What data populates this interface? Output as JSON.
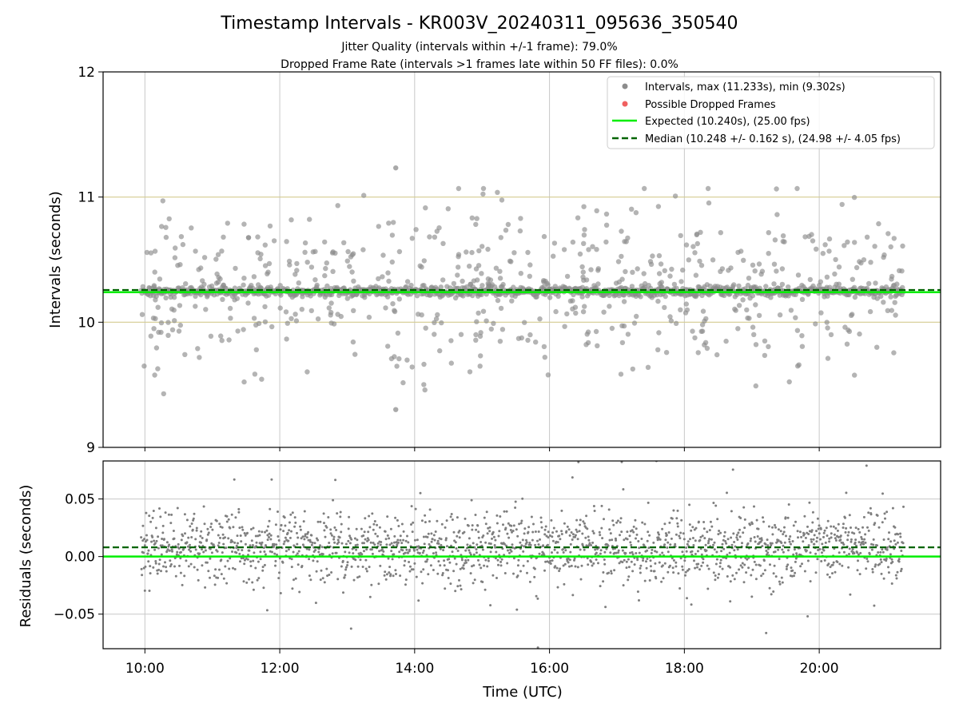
{
  "chart_data": {
    "type": "scatter",
    "title": "Timestamp Intervals - KR003V_20240311_095636_350540",
    "subtitle_line1": "Jitter Quality (intervals within +/-1 frame): 79.0%",
    "subtitle_line2": "Dropped Frame Rate (intervals >1 frames late within 50 FF files): 0.0%",
    "xlabel": "Time (UTC)",
    "x_ticks": [
      "10:00",
      "12:00",
      "14:00",
      "16:00",
      "18:00",
      "20:00"
    ],
    "x_tick_hours": [
      10,
      12,
      14,
      16,
      18,
      20
    ],
    "x_range_hours": [
      9.38,
      21.8
    ],
    "data_start_hour": 9.94,
    "data_end_hour": 21.25,
    "top_panel": {
      "ylabel": "Intervals (seconds)",
      "ylim": [
        9,
        12
      ],
      "y_ticks": [
        9,
        10,
        11,
        12
      ],
      "y_tick_labels": [
        "9",
        "10",
        "11",
        "12"
      ],
      "olive_lines": [
        10,
        11
      ],
      "expected": 10.24,
      "median": 10.248,
      "max": 11.233,
      "min": 9.302,
      "max_point": {
        "hour": 13.72,
        "value": 11.233
      },
      "min_point": {
        "hour": 13.72,
        "value": 9.302
      },
      "dropped_frames": []
    },
    "bottom_panel": {
      "ylabel": "Residuals (seconds)",
      "ylim": [
        -0.08,
        0.083
      ],
      "y_ticks": [
        0.05,
        0.0,
        -0.05
      ],
      "y_tick_labels": [
        "0.05",
        "0.00",
        "−0.05"
      ],
      "expected_residual": 0.0,
      "median_residual": 0.008
    },
    "legend": {
      "intervals": "Intervals, max (11.233s), min (9.302s)",
      "dropped": "Possible Dropped Frames",
      "expected": "Expected (10.240s), (25.00 fps)",
      "median": "Median (10.248 +/- 0.162 s), (24.98 +/- 4.05 fps)"
    },
    "colors": {
      "intervals": "#8c8c8c",
      "residuals": "#7f7f7f",
      "dropped": "#f06060",
      "expected": "#00ee00",
      "median": "#006400",
      "grid": "#c8c8c8",
      "olive": "#d4cc90"
    }
  }
}
